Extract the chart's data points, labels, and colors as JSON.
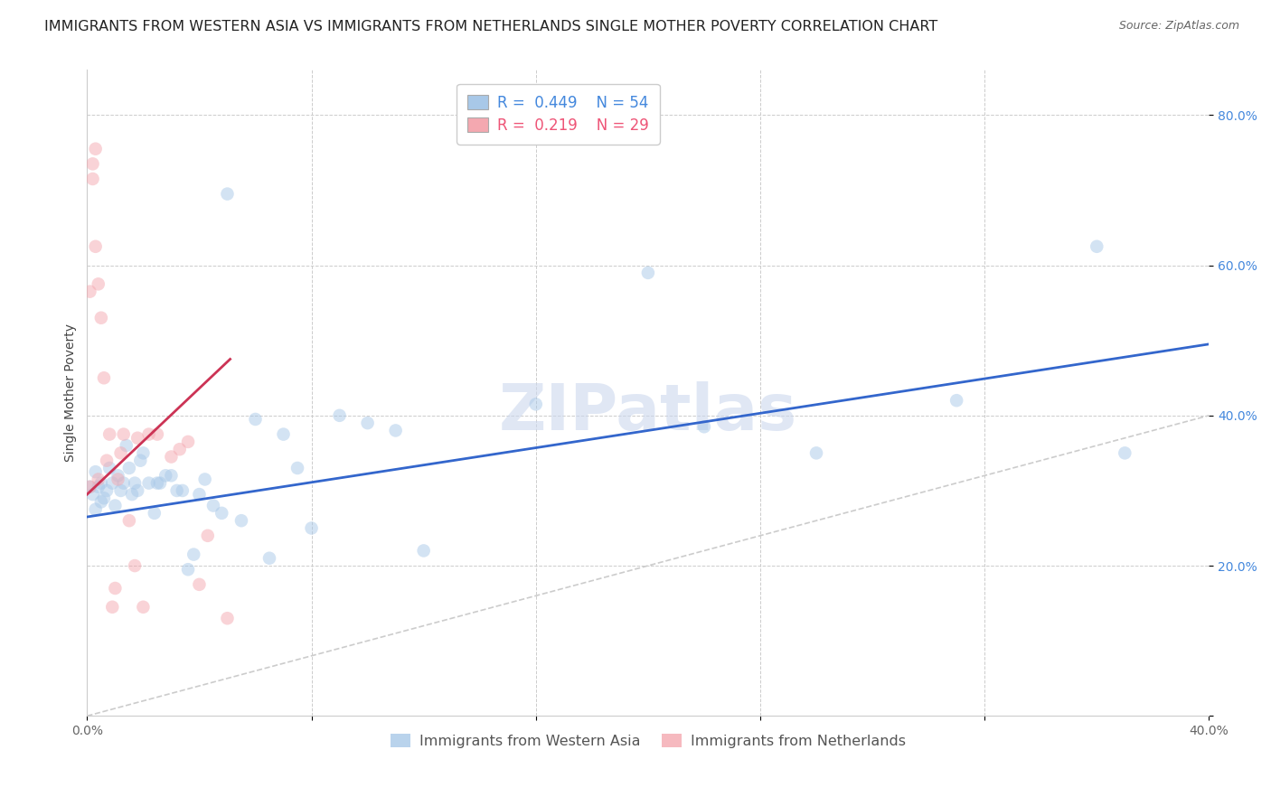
{
  "title": "IMMIGRANTS FROM WESTERN ASIA VS IMMIGRANTS FROM NETHERLANDS SINGLE MOTHER POVERTY CORRELATION CHART",
  "source": "Source: ZipAtlas.com",
  "ylabel": "Single Mother Poverty",
  "series_blue_label": "Immigrants from Western Asia",
  "series_pink_label": "Immigrants from Netherlands",
  "blue_color": "#a8c8e8",
  "pink_color": "#f4a8b0",
  "blue_line_color": "#3366cc",
  "pink_line_color": "#cc3355",
  "diagonal_color": "#cccccc",
  "legend_R_blue": "0.449",
  "legend_N_blue": "54",
  "legend_R_pink": "0.219",
  "legend_N_pink": "29",
  "legend_color_blue": "#4488dd",
  "legend_color_pink": "#ee5577",
  "x_lim": [
    0.0,
    0.4
  ],
  "y_lim": [
    0.0,
    0.86
  ],
  "x_ticks": [
    0.0,
    0.08,
    0.16,
    0.24,
    0.32,
    0.4
  ],
  "x_tick_labels": [
    "0.0%",
    "",
    "",
    "",
    "",
    "40.0%"
  ],
  "y_ticks": [
    0.0,
    0.2,
    0.4,
    0.6,
    0.8
  ],
  "y_tick_labels": [
    "",
    "20.0%",
    "40.0%",
    "60.0%",
    "80.0%"
  ],
  "blue_trend_x": [
    0.0,
    0.4
  ],
  "blue_trend_y": [
    0.265,
    0.495
  ],
  "pink_trend_x": [
    0.0,
    0.051
  ],
  "pink_trend_y": [
    0.295,
    0.475
  ],
  "blue_x": [
    0.001,
    0.002,
    0.003,
    0.003,
    0.004,
    0.005,
    0.005,
    0.006,
    0.007,
    0.008,
    0.009,
    0.01,
    0.011,
    0.012,
    0.013,
    0.014,
    0.015,
    0.016,
    0.017,
    0.018,
    0.019,
    0.02,
    0.022,
    0.024,
    0.025,
    0.026,
    0.028,
    0.03,
    0.032,
    0.034,
    0.036,
    0.038,
    0.04,
    0.042,
    0.045,
    0.048,
    0.05,
    0.055,
    0.06,
    0.065,
    0.07,
    0.075,
    0.08,
    0.09,
    0.1,
    0.11,
    0.12,
    0.16,
    0.2,
    0.22,
    0.26,
    0.31,
    0.36,
    0.37
  ],
  "blue_y": [
    0.305,
    0.295,
    0.325,
    0.275,
    0.305,
    0.285,
    0.31,
    0.29,
    0.3,
    0.33,
    0.31,
    0.28,
    0.32,
    0.3,
    0.31,
    0.36,
    0.33,
    0.295,
    0.31,
    0.3,
    0.34,
    0.35,
    0.31,
    0.27,
    0.31,
    0.31,
    0.32,
    0.32,
    0.3,
    0.3,
    0.195,
    0.215,
    0.295,
    0.315,
    0.28,
    0.27,
    0.695,
    0.26,
    0.395,
    0.21,
    0.375,
    0.33,
    0.25,
    0.4,
    0.39,
    0.38,
    0.22,
    0.415,
    0.59,
    0.385,
    0.35,
    0.42,
    0.625,
    0.35
  ],
  "pink_x": [
    0.001,
    0.001,
    0.002,
    0.002,
    0.003,
    0.003,
    0.004,
    0.004,
    0.005,
    0.006,
    0.007,
    0.008,
    0.009,
    0.01,
    0.011,
    0.012,
    0.013,
    0.015,
    0.017,
    0.018,
    0.02,
    0.022,
    0.025,
    0.03,
    0.033,
    0.036,
    0.04,
    0.043,
    0.05
  ],
  "pink_y": [
    0.305,
    0.565,
    0.715,
    0.735,
    0.755,
    0.625,
    0.575,
    0.315,
    0.53,
    0.45,
    0.34,
    0.375,
    0.145,
    0.17,
    0.315,
    0.35,
    0.375,
    0.26,
    0.2,
    0.37,
    0.145,
    0.375,
    0.375,
    0.345,
    0.355,
    0.365,
    0.175,
    0.24,
    0.13
  ],
  "watermark_text": "ZIPatlas",
  "watermark_color": "#ccd8ee",
  "watermark_alpha": 0.6,
  "watermark_fontsize": 52,
  "marker_size": 110,
  "marker_alpha": 0.5,
  "title_fontsize": 11.5,
  "source_fontsize": 9,
  "axis_label_fontsize": 10,
  "tick_fontsize": 10,
  "legend_fontsize": 12
}
